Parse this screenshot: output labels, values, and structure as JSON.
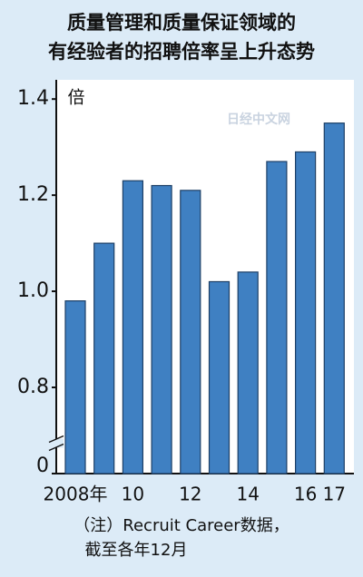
{
  "chart_data": {
    "type": "bar",
    "title": [
      "质量管理和质量保证领域的",
      "有经验者的招聘倍率呈上升态势"
    ],
    "unit": "倍",
    "watermark": "日经中文网",
    "note": [
      "（注）Recruit Career数据，",
      "截至各年12月"
    ],
    "categories": [
      "2008年",
      null,
      "10",
      null,
      "12",
      null,
      "14",
      null,
      "16",
      "17"
    ],
    "values": [
      0.98,
      1.1,
      1.23,
      1.22,
      1.21,
      1.02,
      1.04,
      1.27,
      1.29,
      1.35
    ],
    "color": "#3f80c2",
    "ylim": [
      0,
      1.44
    ],
    "yticks": [
      0,
      {
        "value": 0.8,
        "label": "0.8"
      },
      {
        "value": 1.0,
        "label": "1.0"
      },
      {
        "value": 1.2,
        "label": "1.2"
      },
      {
        "value": 1.4,
        "label": "1.4"
      }
    ],
    "axis_break": true
  }
}
